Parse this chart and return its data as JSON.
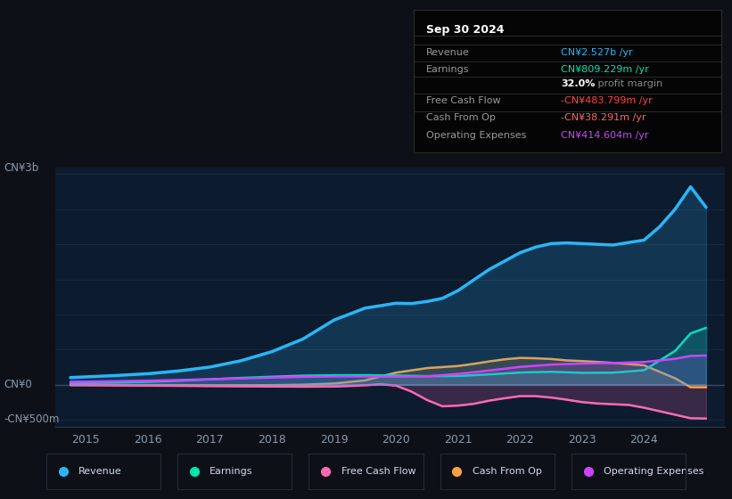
{
  "bg_color": "#0d1117",
  "chart_bg": "#0d1b2e",
  "ylabel_top": "CN¥3b",
  "ylabel_zero": "CN¥0",
  "ylabel_bottom": "-CN¥500m",
  "ylim": [
    -600,
    3100
  ],
  "xmin": 2014.5,
  "xmax": 2025.3,
  "xticks": [
    2015,
    2016,
    2017,
    2018,
    2019,
    2020,
    2021,
    2022,
    2023,
    2024
  ],
  "info_box": {
    "title": "Sep 30 2024",
    "bg": "#050505",
    "border": "#2a2a2a",
    "rows": [
      {
        "label": "Revenue",
        "value": "CN¥2.527b /yr",
        "color": "#29b6f6"
      },
      {
        "label": "Earnings",
        "value": "CN¥809.229m /yr",
        "color": "#00e5b0"
      },
      {
        "label": "",
        "value": "32.0% profit margin",
        "color": "#ffffff",
        "is_margin": true
      },
      {
        "label": "Free Cash Flow",
        "value": "-CN¥483.799m /yr",
        "color": "#ff4444"
      },
      {
        "label": "Cash From Op",
        "value": "-CN¥38.291m /yr",
        "color": "#ff6666"
      },
      {
        "label": "Operating Expenses",
        "value": "CN¥414.604m /yr",
        "color": "#cc44ff"
      }
    ]
  },
  "series": [
    {
      "name": "Revenue",
      "color": "#29b6f6",
      "lw": 2.5,
      "zorder": 10,
      "x": [
        2014.75,
        2015.0,
        2015.5,
        2016.0,
        2016.5,
        2017.0,
        2017.5,
        2018.0,
        2018.5,
        2019.0,
        2019.5,
        2020.0,
        2020.25,
        2020.5,
        2020.75,
        2021.0,
        2021.25,
        2021.5,
        2021.75,
        2022.0,
        2022.25,
        2022.5,
        2022.75,
        2023.0,
        2023.5,
        2024.0,
        2024.25,
        2024.5,
        2024.75,
        2025.0
      ],
      "y": [
        100,
        110,
        130,
        155,
        195,
        250,
        340,
        470,
        650,
        920,
        1090,
        1160,
        1155,
        1185,
        1230,
        1340,
        1490,
        1640,
        1760,
        1880,
        1960,
        2010,
        2020,
        2010,
        1990,
        2060,
        2250,
        2500,
        2820,
        2527
      ]
    },
    {
      "name": "Earnings",
      "color": "#00e5b0",
      "lw": 1.8,
      "zorder": 8,
      "x": [
        2014.75,
        2015.0,
        2015.5,
        2016.0,
        2016.5,
        2017.0,
        2017.5,
        2018.0,
        2018.5,
        2019.0,
        2019.5,
        2020.0,
        2020.5,
        2021.0,
        2021.5,
        2022.0,
        2022.5,
        2023.0,
        2023.5,
        2024.0,
        2024.5,
        2024.75,
        2025.0
      ],
      "y": [
        20,
        22,
        30,
        40,
        55,
        75,
        95,
        112,
        127,
        133,
        134,
        128,
        120,
        122,
        145,
        172,
        182,
        168,
        170,
        205,
        480,
        730,
        809
      ]
    },
    {
      "name": "Free Cash Flow",
      "color": "#ff69b4",
      "lw": 1.8,
      "zorder": 7,
      "x": [
        2014.75,
        2015.0,
        2015.5,
        2016.0,
        2016.5,
        2017.0,
        2017.5,
        2018.0,
        2018.5,
        2019.0,
        2019.25,
        2019.5,
        2019.75,
        2020.0,
        2020.25,
        2020.5,
        2020.75,
        2021.0,
        2021.25,
        2021.5,
        2021.75,
        2022.0,
        2022.25,
        2022.5,
        2022.75,
        2023.0,
        2023.25,
        2023.5,
        2023.75,
        2024.0,
        2024.25,
        2024.5,
        2024.75,
        2025.0
      ],
      "y": [
        -8,
        -9,
        -12,
        -15,
        -18,
        -22,
        -25,
        -28,
        -30,
        -28,
        -20,
        -10,
        5,
        -15,
        -100,
        -220,
        -310,
        -300,
        -275,
        -230,
        -195,
        -165,
        -165,
        -185,
        -215,
        -250,
        -270,
        -280,
        -290,
        -330,
        -380,
        -430,
        -480,
        -484
      ]
    },
    {
      "name": "Cash From Op",
      "color": "#ffa040",
      "lw": 1.8,
      "zorder": 6,
      "x": [
        2014.75,
        2015.0,
        2015.5,
        2016.0,
        2016.5,
        2017.0,
        2017.5,
        2018.0,
        2018.5,
        2019.0,
        2019.5,
        2020.0,
        2020.5,
        2021.0,
        2021.25,
        2021.5,
        2021.75,
        2022.0,
        2022.25,
        2022.5,
        2022.75,
        2023.0,
        2023.5,
        2024.0,
        2024.5,
        2024.75,
        2025.0
      ],
      "y": [
        -5,
        -5,
        -6,
        -7,
        -8,
        -10,
        -10,
        -8,
        -2,
        15,
        60,
        170,
        235,
        265,
        295,
        330,
        360,
        380,
        375,
        365,
        345,
        335,
        310,
        275,
        90,
        -38,
        -38
      ]
    },
    {
      "name": "Operating Expenses",
      "color": "#cc44ff",
      "lw": 1.8,
      "zorder": 9,
      "x": [
        2014.75,
        2015.0,
        2015.5,
        2016.0,
        2016.5,
        2017.0,
        2017.5,
        2018.0,
        2018.5,
        2019.0,
        2019.5,
        2020.0,
        2020.5,
        2021.0,
        2021.5,
        2022.0,
        2022.5,
        2023.0,
        2023.5,
        2024.0,
        2024.5,
        2024.75,
        2025.0
      ],
      "y": [
        40,
        42,
        48,
        56,
        65,
        76,
        88,
        100,
        110,
        116,
        116,
        113,
        118,
        152,
        200,
        252,
        285,
        300,
        308,
        322,
        368,
        408,
        415
      ]
    }
  ],
  "legend": [
    {
      "label": "Revenue",
      "color": "#29b6f6"
    },
    {
      "label": "Earnings",
      "color": "#00e5b0"
    },
    {
      "label": "Free Cash Flow",
      "color": "#ff69b4"
    },
    {
      "label": "Cash From Op",
      "color": "#ffa040"
    },
    {
      "label": "Operating Expenses",
      "color": "#cc44ff"
    }
  ]
}
